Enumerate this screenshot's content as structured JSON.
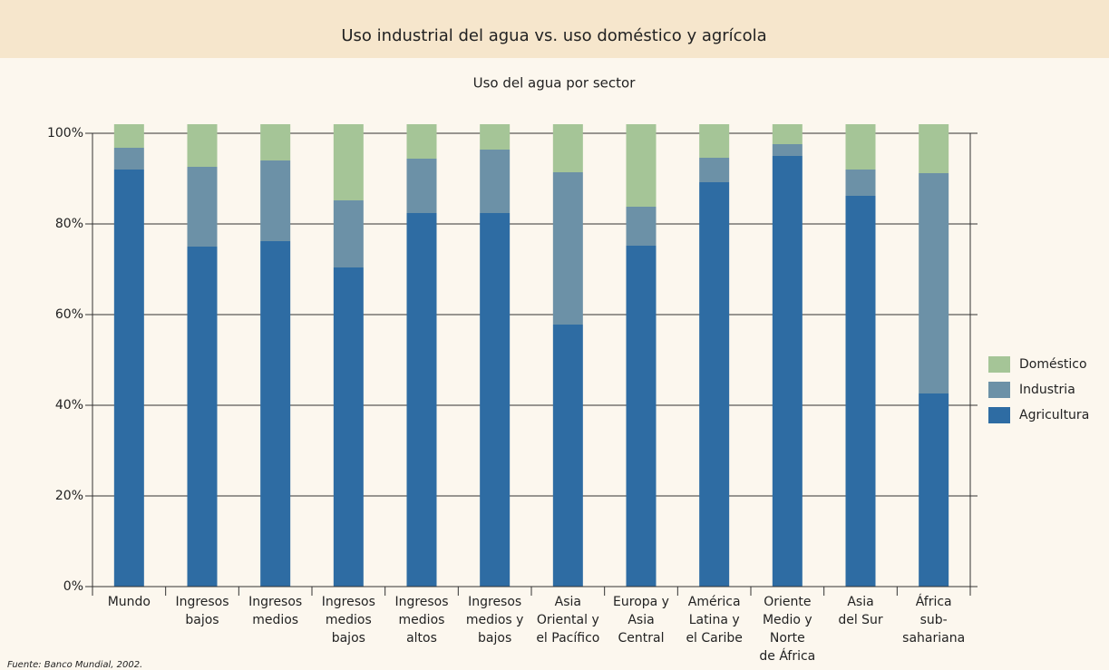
{
  "chart_data": {
    "type": "stacked_bar",
    "title": "Uso industrial del agua vs. uso doméstico y agrícola",
    "subtitle": "Uso del agua por sector",
    "source": "Fuente:  Banco Mundial, 2002.",
    "categories": [
      [
        "Mundo"
      ],
      [
        "Ingresos",
        "bajos"
      ],
      [
        "Ingresos",
        "medios"
      ],
      [
        "Ingresos",
        "medios",
        "bajos"
      ],
      [
        "Ingresos",
        "medios",
        "altos"
      ],
      [
        "Ingresos",
        "medios y",
        "bajos"
      ],
      [
        "Asia",
        "Oriental y",
        "el Pacífico"
      ],
      [
        "Europa y",
        "Asia",
        "Central"
      ],
      [
        "América",
        "Latina y",
        "el Caribe"
      ],
      [
        "Oriente",
        "Medio y",
        "Norte",
        "de África"
      ],
      [
        "Asia",
        "del Sur"
      ],
      [
        "África",
        "sub-",
        "sahariana"
      ]
    ],
    "series": [
      {
        "name": "Agricultura",
        "color": "#2e6ca3",
        "values": [
          92,
          75,
          76.2,
          70.4,
          82.4,
          82.4,
          57.8,
          75.2,
          89.2,
          95,
          86.2,
          42.6
        ]
      },
      {
        "name": "Industria",
        "color": "#6c91a7",
        "values": [
          4.8,
          17.6,
          17.8,
          14.8,
          12,
          14,
          33.6,
          8.6,
          5.4,
          2.6,
          5.8,
          48.6
        ]
      },
      {
        "name": "Doméstico",
        "color": "#a5c597",
        "values": [
          5.2,
          9.4,
          8,
          16.8,
          7.6,
          5.6,
          10.6,
          18.2,
          7.4,
          4.4,
          10,
          10.8
        ]
      }
    ],
    "ylim": [
      0,
      100
    ],
    "yticks": [
      {
        "value": 0,
        "label": "0%"
      },
      {
        "value": 20,
        "label": "20%"
      },
      {
        "value": 40,
        "label": "40%"
      },
      {
        "value": 60,
        "label": "60%"
      },
      {
        "value": 80,
        "label": "80%"
      },
      {
        "value": 100,
        "label": "100%"
      }
    ],
    "grid": true,
    "legend": "right"
  }
}
